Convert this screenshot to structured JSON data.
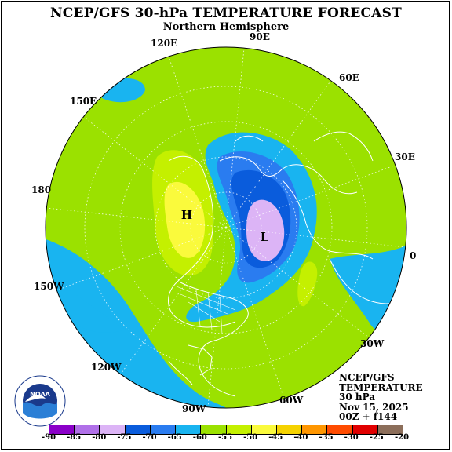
{
  "header": {
    "title": "NCEP/GFS 30-hPa TEMPERATURE FORECAST",
    "subtitle": "Northern Hemisphere"
  },
  "longitude_labels": [
    "90E",
    "60E",
    "30E",
    "0",
    "30W",
    "60W",
    "90W",
    "120W",
    "150W",
    "180",
    "150E",
    "120E"
  ],
  "centers": {
    "high": "H",
    "low": "L"
  },
  "info": {
    "model": "NCEP/GFS",
    "field": "TEMPERATURE",
    "level": "30 hPa",
    "date": "Nov 15, 2025",
    "run": "00Z + f144"
  },
  "logo": {
    "text": "NOAA",
    "ring_text": "NATIONAL OCEANIC AND ATMOSPHERIC ADMINISTRATION",
    "ring_text_bottom": "U.S. DEPARTMENT OF COMMERCE"
  },
  "legend": {
    "ticks": [
      "-90",
      "-85",
      "-80",
      "-75",
      "-70",
      "-65",
      "-60",
      "-55",
      "-50",
      "-45",
      "-40",
      "-35",
      "-30",
      "-25",
      "-20"
    ],
    "colors": [
      "#8a00c8",
      "#b070e8",
      "#dcb4f6",
      "#0a5cdc",
      "#2a7cf0",
      "#19b4f0",
      "#9be100",
      "#c4f000",
      "#fafa3c",
      "#f5d200",
      "#ff9600",
      "#ff4b00",
      "#e10000",
      "#8c6e5a"
    ]
  },
  "palette": {
    "background_field": "#9be100",
    "cold_ring": "#19b4f0",
    "mid_cold": "#2a7cf0",
    "deep_cold": "#0a5cdc",
    "core": "#dcb4f6",
    "warm": "#c4f000",
    "warmer": "#fafa3c"
  }
}
